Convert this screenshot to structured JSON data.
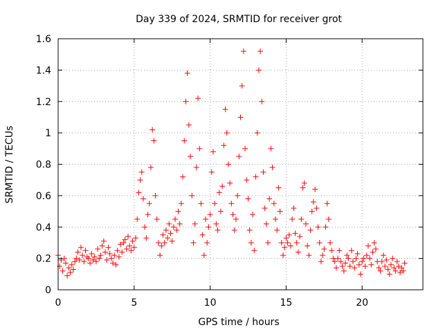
{
  "chart_data": {
    "type": "scatter",
    "title": "Day 339 of 2024, SRMTID for receiver grot",
    "xlabel": "GPS time / hours",
    "ylabel": "SRMTID / TECUs",
    "xlim": [
      0,
      24
    ],
    "ylim": [
      0,
      1.6
    ],
    "x_ticks": [
      0,
      5,
      10,
      15,
      20
    ],
    "x_tick_labels": [
      "0",
      "5",
      "10",
      "15",
      "20"
    ],
    "y_ticks": [
      0,
      0.2,
      0.4,
      0.6,
      0.8,
      1.0,
      1.2,
      1.4,
      1.6
    ],
    "y_tick_labels": [
      "0",
      "0.2",
      "0.4",
      "0.6",
      "0.8",
      "1",
      "1.2",
      "1.4",
      "1.6"
    ],
    "grid": true,
    "marker": "+",
    "marker_color": "#ff0000",
    "series": [
      {
        "name": "SRMTID",
        "x": [
          0.0,
          0.1,
          0.2,
          0.3,
          0.4,
          0.5,
          0.6,
          0.7,
          0.8,
          0.9,
          1.0,
          1.1,
          1.2,
          1.3,
          1.4,
          1.5,
          1.6,
          1.7,
          1.8,
          1.9,
          2.0,
          2.1,
          2.2,
          2.3,
          2.4,
          2.5,
          2.6,
          2.7,
          2.8,
          2.9,
          3.0,
          3.1,
          3.2,
          3.3,
          3.4,
          3.5,
          3.6,
          3.7,
          3.8,
          3.9,
          4.0,
          4.1,
          4.2,
          4.3,
          4.4,
          4.5,
          4.6,
          4.7,
          4.8,
          4.9,
          5.0,
          5.1,
          5.2,
          5.3,
          5.4,
          5.5,
          5.6,
          5.7,
          5.8,
          5.9,
          6.0,
          6.1,
          6.2,
          6.3,
          6.4,
          6.5,
          6.6,
          6.7,
          6.8,
          6.9,
          7.0,
          7.1,
          7.2,
          7.3,
          7.4,
          7.5,
          7.6,
          7.7,
          7.8,
          7.9,
          8.0,
          8.1,
          8.2,
          8.3,
          8.4,
          8.5,
          8.6,
          8.7,
          8.8,
          8.9,
          9.0,
          9.1,
          9.2,
          9.3,
          9.4,
          9.5,
          9.6,
          9.7,
          9.8,
          9.9,
          10.0,
          10.1,
          10.2,
          10.3,
          10.4,
          10.5,
          10.6,
          10.7,
          10.8,
          10.9,
          11.0,
          11.1,
          11.2,
          11.3,
          11.4,
          11.5,
          11.6,
          11.7,
          11.8,
          11.9,
          12.0,
          12.1,
          12.2,
          12.3,
          12.4,
          12.5,
          12.6,
          12.7,
          12.8,
          12.9,
          13.0,
          13.1,
          13.2,
          13.3,
          13.4,
          13.5,
          13.6,
          13.7,
          13.8,
          13.9,
          14.0,
          14.1,
          14.2,
          14.3,
          14.4,
          14.5,
          14.6,
          14.7,
          14.8,
          14.9,
          15.0,
          15.1,
          15.2,
          15.3,
          15.4,
          15.5,
          15.6,
          15.7,
          15.8,
          15.9,
          16.0,
          16.1,
          16.2,
          16.3,
          16.4,
          16.5,
          16.6,
          16.7,
          16.8,
          16.9,
          17.0,
          17.1,
          17.2,
          17.3,
          17.4,
          17.5,
          17.6,
          17.7,
          17.8,
          17.9,
          18.0,
          18.1,
          18.2,
          18.3,
          18.4,
          18.5,
          18.6,
          18.7,
          18.8,
          18.9,
          19.0,
          19.1,
          19.2,
          19.3,
          19.4,
          19.5,
          19.6,
          19.7,
          19.8,
          19.9,
          20.0,
          20.1,
          20.2,
          20.3,
          20.4,
          20.5,
          20.6,
          20.7,
          20.8,
          20.9,
          21.0,
          21.1,
          21.2,
          21.3,
          21.4,
          21.5,
          21.6,
          21.7,
          21.8,
          21.9,
          22.0,
          22.1,
          22.2,
          22.3,
          22.4,
          22.5,
          22.6,
          22.7,
          22.8
        ],
        "y": [
          0.22,
          0.15,
          0.19,
          0.12,
          0.2,
          0.17,
          0.09,
          0.14,
          0.11,
          0.16,
          0.13,
          0.18,
          0.2,
          0.24,
          0.19,
          0.27,
          0.22,
          0.18,
          0.25,
          0.21,
          0.2,
          0.17,
          0.23,
          0.19,
          0.21,
          0.18,
          0.26,
          0.2,
          0.22,
          0.28,
          0.31,
          0.24,
          0.19,
          0.27,
          0.23,
          0.2,
          0.17,
          0.22,
          0.16,
          0.25,
          0.21,
          0.29,
          0.24,
          0.3,
          0.32,
          0.26,
          0.34,
          0.28,
          0.25,
          0.31,
          0.27,
          0.33,
          0.45,
          0.62,
          0.7,
          0.75,
          0.58,
          0.4,
          0.33,
          0.48,
          0.55,
          0.78,
          1.02,
          0.95,
          0.6,
          0.45,
          0.3,
          0.22,
          0.28,
          0.35,
          0.3,
          0.38,
          0.33,
          0.42,
          0.36,
          0.31,
          0.4,
          0.45,
          0.38,
          0.5,
          0.42,
          0.55,
          0.72,
          0.95,
          1.2,
          1.38,
          1.05,
          0.85,
          0.6,
          0.3,
          0.42,
          0.78,
          1.22,
          0.9,
          0.55,
          0.35,
          0.22,
          0.45,
          0.3,
          0.4,
          0.48,
          0.75,
          0.88,
          0.55,
          0.42,
          0.38,
          0.62,
          0.5,
          0.66,
          0.92,
          1.15,
          1.0,
          0.8,
          0.68,
          0.55,
          0.48,
          0.38,
          0.45,
          0.6,
          0.85,
          1.1,
          1.3,
          1.52,
          0.9,
          0.7,
          0.58,
          0.38,
          0.3,
          0.48,
          0.25,
          0.72,
          1.0,
          1.4,
          1.52,
          1.2,
          0.75,
          0.52,
          0.42,
          0.3,
          0.58,
          0.9,
          0.78,
          0.55,
          0.45,
          0.38,
          0.65,
          0.5,
          0.3,
          0.22,
          0.27,
          0.33,
          0.3,
          0.35,
          0.28,
          0.45,
          0.52,
          0.36,
          0.3,
          0.24,
          0.34,
          0.45,
          0.65,
          0.68,
          0.42,
          0.28,
          0.22,
          0.38,
          0.5,
          0.56,
          0.64,
          0.52,
          0.4,
          0.3,
          0.18,
          0.22,
          0.26,
          0.4,
          0.55,
          0.45,
          0.3,
          0.25,
          0.2,
          0.18,
          0.14,
          0.2,
          0.25,
          0.18,
          0.15,
          0.12,
          0.17,
          0.22,
          0.2,
          0.15,
          0.25,
          0.18,
          0.14,
          0.2,
          0.23,
          0.16,
          0.1,
          0.18,
          0.2,
          0.15,
          0.22,
          0.28,
          0.2,
          0.16,
          0.24,
          0.3,
          0.26,
          0.18,
          0.14,
          0.12,
          0.18,
          0.22,
          0.15,
          0.19,
          0.13,
          0.1,
          0.16,
          0.2,
          0.14,
          0.12,
          0.18,
          0.15,
          0.11,
          0.14,
          0.12,
          0.17
        ]
      }
    ]
  }
}
